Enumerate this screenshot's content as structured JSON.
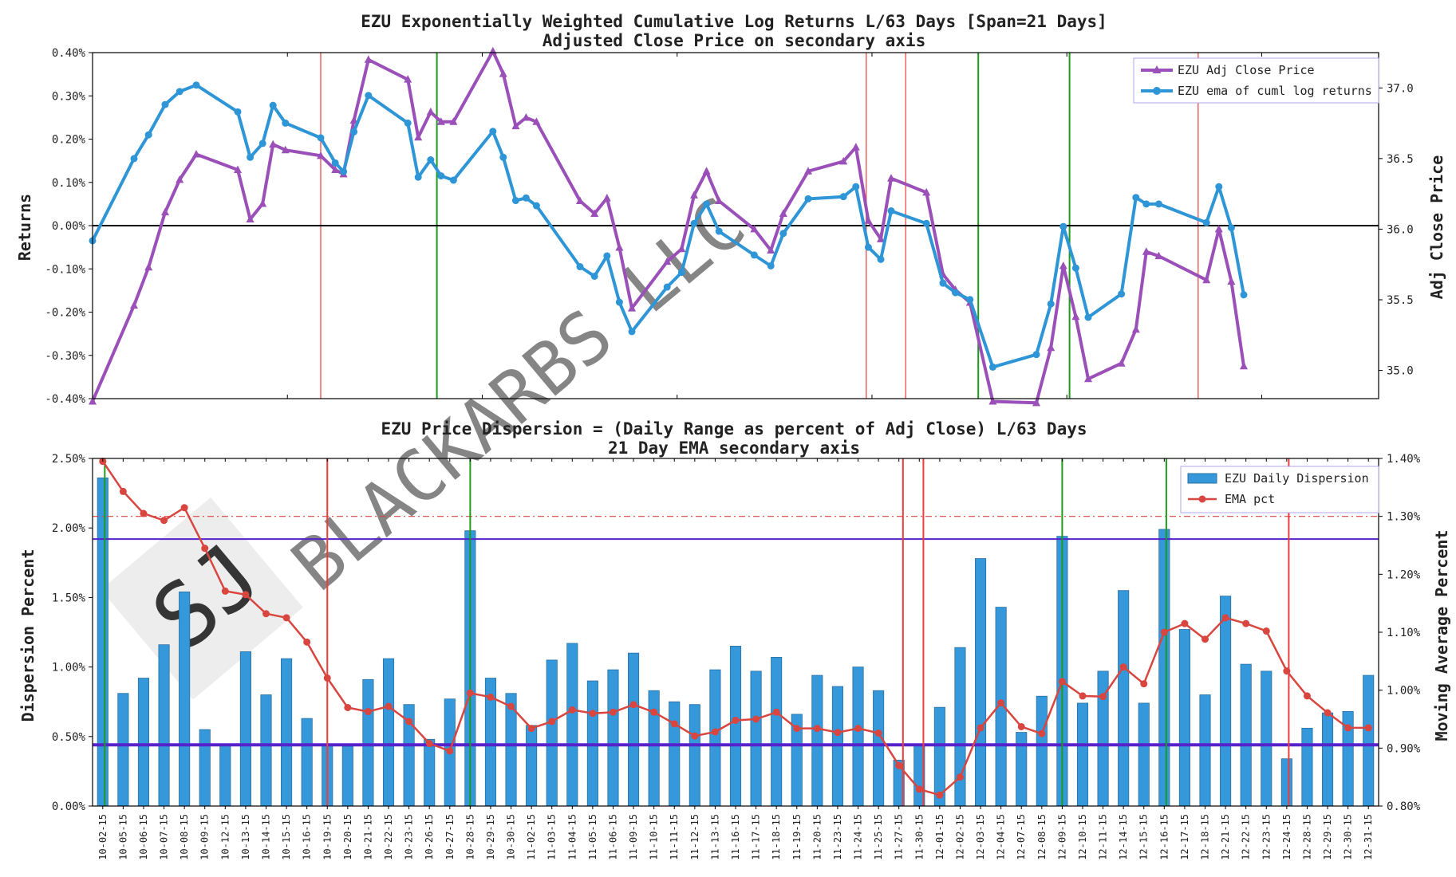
{
  "watermark": "BLACKARBS LLC",
  "colors": {
    "purple": "#9b4fb8",
    "blue": "#2e95d6",
    "red_vline": "#ee3b3b",
    "green_vline": "#1c9b1c",
    "bar": "#3498db",
    "ema": "#d9453f",
    "band": "#5522cc"
  },
  "chart_data": [
    {
      "type": "line",
      "title": "EZU Exponentially Weighted Cumulative Log Returns L/63 Days [Span=21 Days]",
      "subtitle": "Adjusted Close Price on secondary axis",
      "ylabel": "Returns",
      "y2label": "Adj Close Price",
      "ylim": [
        -0.4,
        0.4
      ],
      "y2lim": [
        34.8,
        37.25
      ],
      "yticks": [
        "-0.40%",
        "-0.30%",
        "-0.20%",
        "-0.10%",
        "0.00%",
        "0.10%",
        "0.20%",
        "0.30%",
        "0.40%"
      ],
      "y2ticks": [
        "35.0",
        "35.5",
        "36.0",
        "36.5",
        "37.0"
      ],
      "legend_position": "top-right",
      "series": [
        {
          "name": "EZU Adj Close Price",
          "axis": "right",
          "marker": "triangle",
          "points": [
            [
              0,
              34.78
            ],
            [
              2,
              35.46
            ],
            [
              2.7,
              35.73
            ],
            [
              3.5,
              36.12
            ],
            [
              4.2,
              36.35
            ],
            [
              5,
              36.53
            ],
            [
              7,
              36.42
            ],
            [
              7.6,
              36.07
            ],
            [
              8.2,
              36.18
            ],
            [
              8.7,
              36.6
            ],
            [
              9.3,
              36.56
            ],
            [
              11,
              36.52
            ],
            [
              11.7,
              36.42
            ],
            [
              12.1,
              36.39
            ],
            [
              12.6,
              36.77
            ],
            [
              13.3,
              37.2
            ],
            [
              15.2,
              37.06
            ],
            [
              15.7,
              36.65
            ],
            [
              16.3,
              36.83
            ],
            [
              16.8,
              36.76
            ],
            [
              17.4,
              36.76
            ],
            [
              19.3,
              37.26
            ],
            [
              19.8,
              37.1
            ],
            [
              20.4,
              36.73
            ],
            [
              20.9,
              36.79
            ],
            [
              21.4,
              36.76
            ],
            [
              23.5,
              36.2
            ],
            [
              24.2,
              36.11
            ],
            [
              24.8,
              36.22
            ],
            [
              25.4,
              35.87
            ],
            [
              26,
              35.44
            ],
            [
              27.7,
              35.77
            ],
            [
              28.4,
              35.86
            ],
            [
              29,
              36.24
            ],
            [
              29.6,
              36.41
            ],
            [
              30.2,
              36.2
            ],
            [
              31.9,
              36.0
            ],
            [
              32.7,
              35.85
            ],
            [
              33.3,
              36.11
            ],
            [
              34.5,
              36.41
            ],
            [
              36.2,
              36.48
            ],
            [
              36.8,
              36.58
            ],
            [
              37.4,
              36.06
            ],
            [
              38,
              35.93
            ],
            [
              38.5,
              36.36
            ],
            [
              40.2,
              36.26
            ],
            [
              41,
              35.68
            ],
            [
              41.6,
              35.57
            ],
            [
              42.3,
              35.48
            ],
            [
              43.4,
              34.78
            ],
            [
              45.5,
              34.77
            ],
            [
              46.2,
              35.16
            ],
            [
              46.8,
              35.74
            ],
            [
              47.4,
              35.38
            ],
            [
              48,
              34.94
            ],
            [
              49.6,
              35.05
            ],
            [
              50.3,
              35.29
            ],
            [
              50.8,
              35.84
            ],
            [
              51.4,
              35.81
            ],
            [
              53.7,
              35.64
            ],
            [
              54.3,
              36.0
            ],
            [
              54.9,
              35.63
            ],
            [
              55.5,
              35.03
            ]
          ]
        },
        {
          "name": "EZU ema of cuml log returns",
          "axis": "left",
          "marker": "circle",
          "points": [
            [
              0,
              -0.035
            ],
            [
              2,
              0.155
            ],
            [
              2.7,
              0.21
            ],
            [
              3.5,
              0.28
            ],
            [
              4.2,
              0.31
            ],
            [
              5,
              0.325
            ],
            [
              7,
              0.263
            ],
            [
              7.6,
              0.158
            ],
            [
              8.2,
              0.19
            ],
            [
              8.7,
              0.278
            ],
            [
              9.3,
              0.237
            ],
            [
              11,
              0.203
            ],
            [
              11.7,
              0.145
            ],
            [
              12.1,
              0.125
            ],
            [
              12.6,
              0.217
            ],
            [
              13.3,
              0.301
            ],
            [
              15.2,
              0.237
            ],
            [
              15.7,
              0.112
            ],
            [
              16.3,
              0.152
            ],
            [
              16.8,
              0.115
            ],
            [
              17.4,
              0.105
            ],
            [
              19.3,
              0.218
            ],
            [
              19.8,
              0.158
            ],
            [
              20.4,
              0.058
            ],
            [
              20.9,
              0.064
            ],
            [
              21.4,
              0.046
            ],
            [
              23.5,
              -0.095
            ],
            [
              24.2,
              -0.117
            ],
            [
              24.8,
              -0.07
            ],
            [
              25.4,
              -0.177
            ],
            [
              26,
              -0.245
            ],
            [
              27.7,
              -0.142
            ],
            [
              28.4,
              -0.108
            ],
            [
              29,
              0.005
            ],
            [
              29.6,
              0.05
            ],
            [
              30.2,
              -0.013
            ],
            [
              31.9,
              -0.068
            ],
            [
              32.7,
              -0.093
            ],
            [
              33.3,
              -0.018
            ],
            [
              34.5,
              0.062
            ],
            [
              36.2,
              0.067
            ],
            [
              36.8,
              0.09
            ],
            [
              37.4,
              -0.05
            ],
            [
              38,
              -0.078
            ],
            [
              38.5,
              0.034
            ],
            [
              40.2,
              0.005
            ],
            [
              41,
              -0.133
            ],
            [
              41.6,
              -0.155
            ],
            [
              42.3,
              -0.171
            ],
            [
              43.4,
              -0.327
            ],
            [
              45.5,
              -0.298
            ],
            [
              46.2,
              -0.181
            ],
            [
              46.8,
              -0.002
            ],
            [
              47.4,
              -0.098
            ],
            [
              48,
              -0.212
            ],
            [
              49.6,
              -0.158
            ],
            [
              50.3,
              0.065
            ],
            [
              50.8,
              0.05
            ],
            [
              51.4,
              0.05
            ],
            [
              53.7,
              0.007
            ],
            [
              54.3,
              0.09
            ],
            [
              54.9,
              -0.005
            ],
            [
              55.5,
              -0.16
            ]
          ]
        }
      ],
      "hlines": [
        0
      ],
      "red_vlines": [
        11,
        37.3,
        39.2,
        53.3
      ],
      "green_vlines": [
        16.6,
        42.7,
        47.1
      ]
    },
    {
      "type": "bar",
      "title": "EZU Price Dispersion = (Daily Range as percent of Adj Close) L/63 Days",
      "subtitle": "21 Day EMA secondary axis",
      "ylabel": "Dispersion Percent",
      "y2label": "Moving Average Percent",
      "ylim": [
        0,
        2.5
      ],
      "y2lim": [
        0.8,
        1.4
      ],
      "yticks": [
        "0.00%",
        "0.50%",
        "1.00%",
        "1.50%",
        "2.00%",
        "2.50%"
      ],
      "y2ticks": [
        "0.80%",
        "0.90%",
        "1.00%",
        "1.10%",
        "1.20%",
        "1.30%",
        "1.40%"
      ],
      "legend_position": "top-right",
      "categories": [
        "10-02-15",
        "10-05-15",
        "10-06-15",
        "10-07-15",
        "10-08-15",
        "10-09-15",
        "10-12-15",
        "10-13-15",
        "10-14-15",
        "10-15-15",
        "10-16-15",
        "10-19-15",
        "10-20-15",
        "10-21-15",
        "10-22-15",
        "10-23-15",
        "10-26-15",
        "10-27-15",
        "10-28-15",
        "10-29-15",
        "10-30-15",
        "11-02-15",
        "11-03-15",
        "11-04-15",
        "11-05-15",
        "11-06-15",
        "11-09-15",
        "11-10-15",
        "11-11-15",
        "11-12-15",
        "11-13-15",
        "11-16-15",
        "11-17-15",
        "11-18-15",
        "11-19-15",
        "11-20-15",
        "11-23-15",
        "11-24-15",
        "11-25-15",
        "11-27-15",
        "11-30-15",
        "12-01-15",
        "12-02-15",
        "12-03-15",
        "12-04-15",
        "12-07-15",
        "12-08-15",
        "12-09-15",
        "12-10-15",
        "12-11-15",
        "12-14-15",
        "12-15-15",
        "12-16-15",
        "12-17-15",
        "12-18-15",
        "12-21-15",
        "12-22-15",
        "12-23-15",
        "12-24-15",
        "12-28-15",
        "12-29-15",
        "12-30-15",
        "12-31-15"
      ],
      "series": [
        {
          "name": "EZU Daily Dispersion",
          "axis": "left",
          "values": [
            2.36,
            0.81,
            0.92,
            1.16,
            1.54,
            0.55,
            0.44,
            1.11,
            0.8,
            1.06,
            0.63,
            0.44,
            0.43,
            0.91,
            1.06,
            0.73,
            0.48,
            0.77,
            1.98,
            0.92,
            0.81,
            0.58,
            1.05,
            1.17,
            0.9,
            0.98,
            1.1,
            0.83,
            0.75,
            0.73,
            0.98,
            1.15,
            0.97,
            1.07,
            0.66,
            0.94,
            0.86,
            1.0,
            0.83,
            0.33,
            0.44,
            0.71,
            1.14,
            1.78,
            1.43,
            0.53,
            0.79,
            1.94,
            0.74,
            0.97,
            1.55,
            0.74,
            1.99,
            1.27,
            0.8,
            1.51,
            1.02,
            0.97,
            0.34,
            0.56,
            0.67,
            0.68,
            0.94
          ]
        },
        {
          "name": "EMA pct",
          "axis": "right",
          "values": [
            1.395,
            1.343,
            1.305,
            1.293,
            1.315,
            1.245,
            1.171,
            1.165,
            1.132,
            1.125,
            1.083,
            1.021,
            0.97,
            0.963,
            0.972,
            0.946,
            0.908,
            0.895,
            0.995,
            0.988,
            0.972,
            0.934,
            0.946,
            0.966,
            0.96,
            0.962,
            0.975,
            0.962,
            0.942,
            0.921,
            0.928,
            0.948,
            0.95,
            0.962,
            0.934,
            0.934,
            0.927,
            0.934,
            0.926,
            0.87,
            0.829,
            0.819,
            0.85,
            0.935,
            0.978,
            0.937,
            0.925,
            1.015,
            0.99,
            0.989,
            1.04,
            1.011,
            1.1,
            1.115,
            1.088,
            1.125,
            1.115,
            1.102,
            1.033,
            0.99,
            0.961,
            0.935,
            0.935
          ]
        }
      ],
      "hlines_left": [
        1.92,
        0.44
      ],
      "hline_right_dashdot": 1.3,
      "red_vlines": [
        11,
        39.2,
        40.2,
        58.1
      ],
      "green_vlines": [
        0.1,
        18,
        47,
        52.1
      ]
    }
  ]
}
